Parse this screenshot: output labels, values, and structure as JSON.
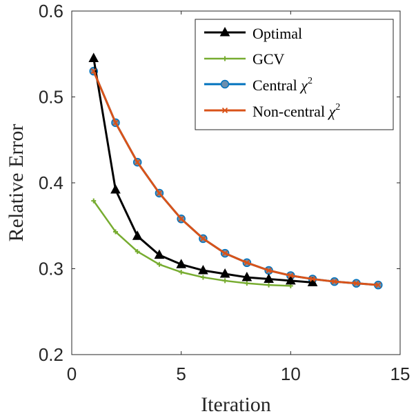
{
  "chart_data": {
    "type": "line",
    "xlabel": "Iteration",
    "ylabel": "Relative Error",
    "xlim": [
      0,
      15
    ],
    "ylim": [
      0.2,
      0.6
    ],
    "xticks": [
      0,
      5,
      10,
      15
    ],
    "yticks": [
      0.2,
      0.3,
      0.4,
      0.5,
      0.6
    ],
    "xtick_labels": [
      "0",
      "5",
      "10",
      "15"
    ],
    "ytick_labels": [
      "0.2",
      "0.3",
      "0.4",
      "0.5",
      "0.6"
    ],
    "grid": false,
    "legend_position": "top-right",
    "series": [
      {
        "name": "Optimal",
        "legend_label": "Optimal",
        "color": "#000000",
        "marker": "triangle",
        "x": [
          1,
          2,
          3,
          4,
          5,
          6,
          7,
          8,
          9,
          10,
          11
        ],
        "values": [
          0.545,
          0.392,
          0.338,
          0.316,
          0.305,
          0.298,
          0.294,
          0.29,
          0.288,
          0.286,
          0.284
        ]
      },
      {
        "name": "GCV",
        "legend_label": "GCV",
        "color": "#77AC30",
        "marker": "plus",
        "x": [
          1,
          2,
          3,
          4,
          5,
          6,
          7,
          8,
          9,
          10
        ],
        "values": [
          0.379,
          0.343,
          0.32,
          0.305,
          0.296,
          0.29,
          0.286,
          0.283,
          0.281,
          0.28
        ]
      },
      {
        "name": "Central chi2",
        "legend_label": "Central ",
        "color": "#0072BD",
        "marker": "circle",
        "x": [
          1,
          2,
          3,
          4,
          5,
          6,
          7,
          8,
          9,
          10,
          11,
          12,
          13,
          14
        ],
        "values": [
          0.53,
          0.47,
          0.424,
          0.388,
          0.358,
          0.335,
          0.318,
          0.307,
          0.298,
          0.292,
          0.288,
          0.285,
          0.283,
          0.281
        ]
      },
      {
        "name": "Non-central chi2",
        "legend_label": "Non-central ",
        "color": "#D95319",
        "marker": "x",
        "x": [
          1,
          2,
          3,
          4,
          5,
          6,
          7,
          8,
          9,
          10,
          11,
          12,
          13,
          14
        ],
        "values": [
          0.53,
          0.47,
          0.424,
          0.388,
          0.358,
          0.335,
          0.318,
          0.307,
          0.298,
          0.292,
          0.288,
          0.285,
          0.283,
          0.281
        ]
      }
    ],
    "chi_symbol": "χ",
    "chi_superscript": "2"
  }
}
